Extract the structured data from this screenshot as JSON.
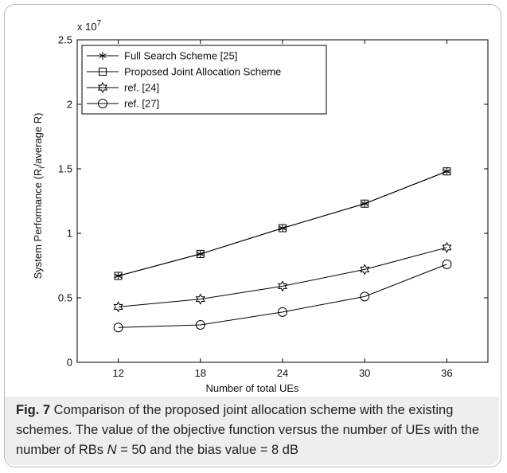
{
  "chart_data": {
    "type": "line",
    "xlabel": "Number of total UEs",
    "ylabel_main": "System Performance (R",
    "ylabel_sub": "i",
    "ylabel_tail": "/average R)",
    "y_multiplier": "x 10",
    "y_multiplier_exp": "7",
    "xlim": [
      9,
      39
    ],
    "ylim": [
      0,
      2.5
    ],
    "x_ticks": [
      "12",
      "18",
      "24",
      "30",
      "36"
    ],
    "y_ticks": [
      "0",
      "0.5",
      "1",
      "1.5",
      "2",
      "2.5"
    ],
    "x": [
      12,
      18,
      24,
      30,
      36
    ],
    "series": [
      {
        "name": "Full Search Scheme [25]",
        "marker": "asterisk",
        "values": [
          0.67,
          0.84,
          1.04,
          1.23,
          1.48
        ]
      },
      {
        "name": "Proposed Joint Allocation Scheme",
        "marker": "square",
        "values": [
          0.67,
          0.84,
          1.04,
          1.23,
          1.48
        ]
      },
      {
        "name": "ref. [24]",
        "marker": "hexagram",
        "values": [
          0.43,
          0.49,
          0.59,
          0.72,
          0.89
        ]
      },
      {
        "name": "ref. [27]",
        "marker": "circle",
        "values": [
          0.27,
          0.29,
          0.39,
          0.51,
          0.76
        ]
      }
    ],
    "legend_position": "top-left",
    "grid": false
  },
  "caption": {
    "label": "Fig. 7",
    "text": " Comparison of the proposed joint allocation scheme with the existing schemes. The value of the objective function versus the number of UEs with the number of RBs ",
    "var": "N",
    "text2": " = 50 and the bias value = 8 dB"
  }
}
